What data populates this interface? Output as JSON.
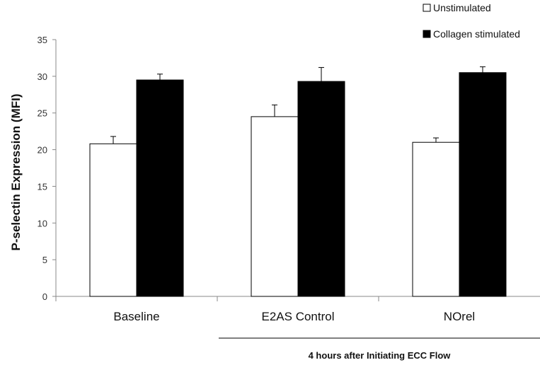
{
  "chart_data": {
    "type": "bar",
    "title": "",
    "xlabel": "",
    "ylabel": "P-selectin Expression (MFI)",
    "ylim": [
      0,
      35
    ],
    "yticks": [
      0,
      5,
      10,
      15,
      20,
      25,
      30,
      35
    ],
    "categories": [
      "Baseline",
      "E2AS Control",
      "NOrel"
    ],
    "series": [
      {
        "name": "Unstimulated",
        "color": "#ffffff",
        "values": [
          20.8,
          24.5,
          21.0
        ],
        "errors": [
          1.0,
          1.6,
          0.6
        ]
      },
      {
        "name": "Collagen stimulated",
        "color": "#000000",
        "values": [
          29.5,
          29.3,
          30.5
        ],
        "errors": [
          0.8,
          1.9,
          0.8
        ]
      }
    ],
    "legend_position": "top-right",
    "group_annotation": "4 hours after Initiating ECC Flow",
    "grid": false
  }
}
